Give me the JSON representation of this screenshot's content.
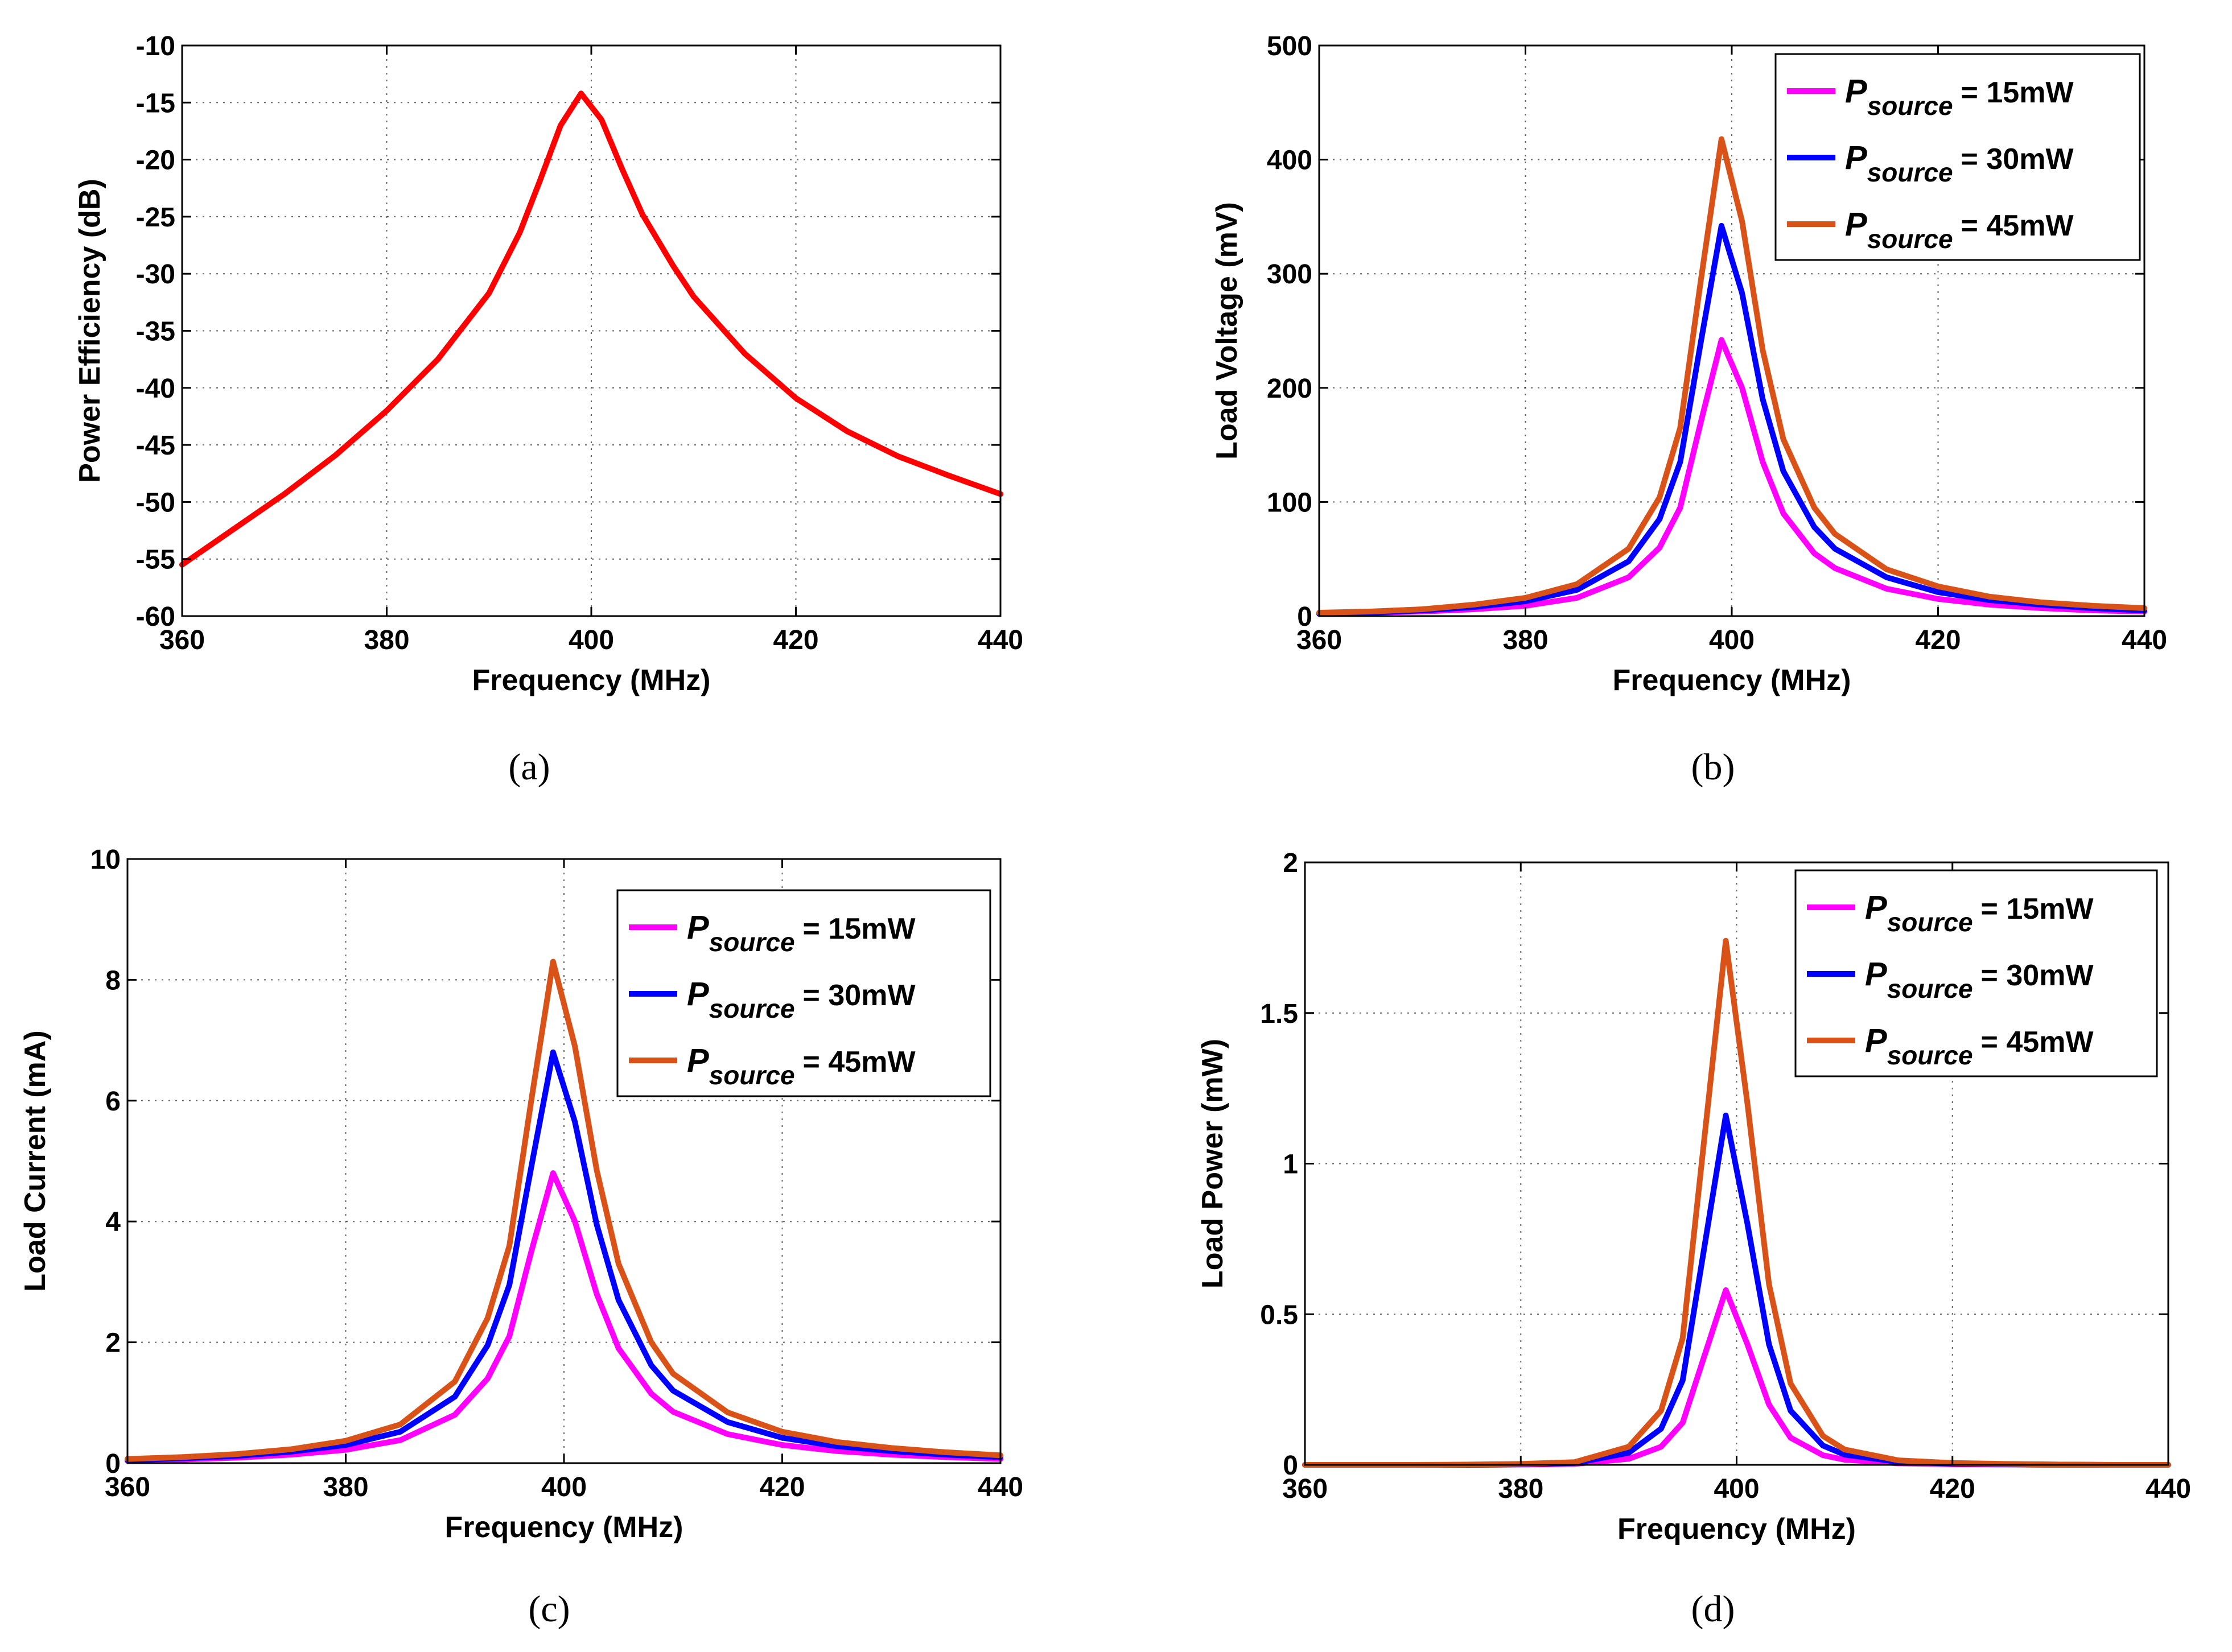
{
  "chart_data": [
    {
      "type": "line",
      "panel": "a",
      "caption": "(a)",
      "xlabel": "Frequency (MHz)",
      "ylabel": "Power Efficiency (dB)",
      "xlim": [
        360,
        440
      ],
      "ylim": [
        -60,
        -10
      ],
      "xticks": [
        360,
        380,
        400,
        420,
        440
      ],
      "yticks": [
        -60,
        -55,
        -50,
        -45,
        -40,
        -35,
        -30,
        -25,
        -20,
        -15,
        -10
      ],
      "grid": true,
      "legend": null,
      "x": [
        360,
        365,
        370,
        375,
        380,
        385,
        390,
        393,
        395,
        397,
        399,
        401,
        403,
        405,
        408,
        410,
        415,
        420,
        425,
        430,
        435,
        440
      ],
      "series": [
        {
          "name": "Power Efficiency",
          "color": "#ff0000",
          "values": [
            -55.5,
            -52.4,
            -49.3,
            -45.9,
            -42.0,
            -37.5,
            -31.7,
            -26.4,
            -21.8,
            -17.0,
            -14.2,
            -16.5,
            -20.8,
            -24.8,
            -29.3,
            -32.0,
            -37.0,
            -40.9,
            -43.8,
            -46.0,
            -47.7,
            -49.3
          ]
        }
      ]
    },
    {
      "type": "line",
      "panel": "b",
      "caption": "(b)",
      "xlabel": "Frequency (MHz)",
      "ylabel": "Load Voltage (mV)",
      "xlim": [
        360,
        440
      ],
      "ylim": [
        0,
        500
      ],
      "xticks": [
        360,
        380,
        400,
        420,
        440
      ],
      "yticks": [
        0,
        100,
        200,
        300,
        400,
        500
      ],
      "grid": true,
      "legend": "top-right",
      "x": [
        360,
        365,
        370,
        375,
        380,
        385,
        390,
        393,
        395,
        397,
        399,
        401,
        403,
        405,
        408,
        410,
        415,
        420,
        425,
        430,
        435,
        440
      ],
      "series": [
        {
          "name": "15mW",
          "color": "#ff00ff",
          "values": [
            2,
            3,
            4,
            6,
            9,
            16,
            34,
            60,
            95,
            170,
            242,
            200,
            135,
            90,
            55,
            42,
            24,
            15,
            10,
            7,
            5,
            4
          ]
        },
        {
          "name": "30mW",
          "color": "#0000ff",
          "values": [
            2,
            3,
            5,
            8,
            13,
            23,
            48,
            85,
            135,
            240,
            342,
            283,
            190,
            127,
            78,
            59,
            34,
            21,
            14,
            10,
            7,
            5
          ]
        },
        {
          "name": "45mW",
          "color": "#d95319",
          "values": [
            3,
            4,
            6,
            10,
            16,
            28,
            59,
            104,
            165,
            294,
            418,
            346,
            233,
            155,
            95,
            72,
            41,
            26,
            17,
            12,
            9,
            7
          ]
        }
      ]
    },
    {
      "type": "line",
      "panel": "c",
      "caption": "(c)",
      "xlabel": "Frequency (MHz)",
      "ylabel": "Load Current (mA)",
      "xlim": [
        360,
        440
      ],
      "ylim": [
        0,
        10
      ],
      "xticks": [
        360,
        380,
        400,
        420,
        440
      ],
      "yticks": [
        0,
        2,
        4,
        6,
        8,
        10
      ],
      "grid": true,
      "legend": "top-right",
      "x": [
        360,
        365,
        370,
        375,
        380,
        385,
        390,
        393,
        395,
        397,
        399,
        401,
        403,
        405,
        408,
        410,
        415,
        420,
        425,
        430,
        435,
        440
      ],
      "series": [
        {
          "name": "15mW",
          "color": "#ff00ff",
          "values": [
            0.04,
            0.06,
            0.09,
            0.14,
            0.22,
            0.38,
            0.8,
            1.4,
            2.1,
            3.5,
            4.8,
            4.0,
            2.8,
            1.9,
            1.15,
            0.85,
            0.48,
            0.3,
            0.2,
            0.14,
            0.1,
            0.07
          ]
        },
        {
          "name": "30mW",
          "color": "#0000ff",
          "values": [
            0.05,
            0.08,
            0.12,
            0.19,
            0.3,
            0.52,
            1.1,
            1.95,
            2.95,
            4.9,
            6.8,
            5.65,
            3.95,
            2.7,
            1.62,
            1.2,
            0.68,
            0.42,
            0.28,
            0.2,
            0.14,
            0.1
          ]
        },
        {
          "name": "45mW",
          "color": "#d95319",
          "values": [
            0.07,
            0.1,
            0.15,
            0.23,
            0.37,
            0.64,
            1.35,
            2.4,
            3.6,
            6.0,
            8.3,
            6.9,
            4.85,
            3.3,
            2.0,
            1.48,
            0.84,
            0.52,
            0.35,
            0.25,
            0.18,
            0.13
          ]
        }
      ]
    },
    {
      "type": "line",
      "panel": "d",
      "caption": "(d)",
      "xlabel": "Frequency (MHz)",
      "ylabel": "Load Power (mW)",
      "xlim": [
        360,
        440
      ],
      "ylim": [
        0,
        2
      ],
      "xticks": [
        360,
        380,
        400,
        420,
        440
      ],
      "yticks": [
        0,
        0.5,
        1,
        1.5,
        2
      ],
      "grid": true,
      "legend": "top-right",
      "x": [
        360,
        365,
        370,
        375,
        380,
        385,
        390,
        393,
        395,
        397,
        399,
        401,
        403,
        405,
        408,
        410,
        415,
        420,
        425,
        430,
        435,
        440
      ],
      "series": [
        {
          "name": "15mW",
          "color": "#ff00ff",
          "values": [
            0,
            0,
            0,
            0,
            0.001,
            0.003,
            0.02,
            0.06,
            0.14,
            0.36,
            0.58,
            0.4,
            0.2,
            0.09,
            0.032,
            0.017,
            0.005,
            0.002,
            0.001,
            0,
            0,
            0
          ]
        },
        {
          "name": "30mW",
          "color": "#0000ff",
          "values": [
            0,
            0,
            0,
            0,
            0.002,
            0.006,
            0.04,
            0.12,
            0.28,
            0.72,
            1.16,
            0.8,
            0.4,
            0.18,
            0.064,
            0.034,
            0.01,
            0.004,
            0.002,
            0.001,
            0,
            0
          ]
        },
        {
          "name": "45mW",
          "color": "#d95319",
          "values": [
            0,
            0,
            0,
            0.001,
            0.003,
            0.009,
            0.06,
            0.18,
            0.42,
            1.08,
            1.74,
            1.2,
            0.6,
            0.27,
            0.096,
            0.051,
            0.015,
            0.006,
            0.003,
            0.001,
            0,
            0
          ]
        }
      ]
    }
  ],
  "legend_prefix": "P",
  "legend_subscript": "source",
  "legend_entries": [
    "= 15mW",
    "= 30mW",
    "= 45mW"
  ]
}
